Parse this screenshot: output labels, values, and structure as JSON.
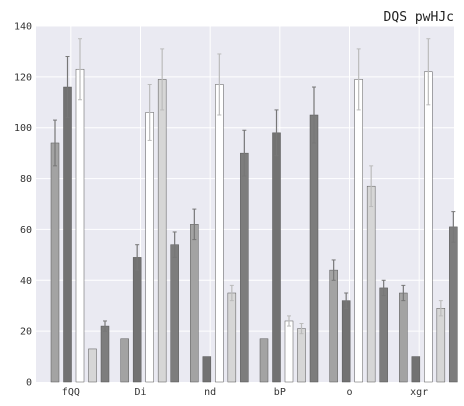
{
  "chart_data": {
    "type": "bar",
    "title": "DQS pwHJc",
    "xlabel": "",
    "ylabel": "",
    "categories": [
      "fQQ",
      "Di",
      "nd",
      "bP",
      "o",
      "xgr"
    ],
    "ylim": [
      0,
      140
    ],
    "yticks": [
      0,
      20,
      40,
      60,
      80,
      100,
      120,
      140
    ],
    "grid": true,
    "legend": "none",
    "series": [
      {
        "values": [
          94,
          17,
          62,
          17,
          44,
          35
        ],
        "errors": [
          9,
          0,
          6,
          0,
          4,
          3
        ],
        "color": "#a3a3a3"
      },
      {
        "values": [
          116,
          49,
          10,
          98,
          32,
          10
        ],
        "errors": [
          12,
          5,
          0,
          9,
          3,
          0
        ],
        "color": "#727272"
      },
      {
        "values": [
          123,
          106,
          117,
          24,
          119,
          122
        ],
        "errors": [
          12,
          11,
          12,
          2,
          12,
          13
        ],
        "color": "#ffffff"
      },
      {
        "values": [
          13,
          119,
          35,
          21,
          77,
          29
        ],
        "errors": [
          0,
          12,
          3,
          2,
          8,
          3
        ],
        "color": "#d6d6d6"
      },
      {
        "values": [
          22,
          54,
          90,
          105,
          37,
          61
        ],
        "errors": [
          2,
          5,
          9,
          11,
          3,
          6
        ],
        "color": "#7d7d7d"
      }
    ]
  }
}
